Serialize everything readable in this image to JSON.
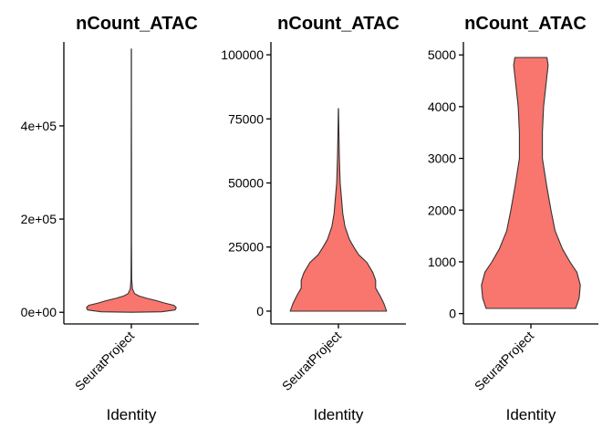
{
  "chart_data": [
    {
      "type": "violin",
      "title": "nCount_ATAC",
      "xlabel": "Identity",
      "ylabel": "",
      "categories": [
        "SeuratProject"
      ],
      "ylim": [
        -25000,
        580000
      ],
      "yticks": [
        0,
        200000,
        400000
      ],
      "ytick_labels": [
        "0e+00",
        "2e+05",
        "4e+05"
      ],
      "fill": "#F8766D",
      "density": [
        [
          0,
          0.0
        ],
        [
          1000,
          0.55
        ],
        [
          5000,
          0.8
        ],
        [
          10000,
          0.82
        ],
        [
          15000,
          0.78
        ],
        [
          20000,
          0.6
        ],
        [
          25000,
          0.46
        ],
        [
          30000,
          0.28
        ],
        [
          35000,
          0.14
        ],
        [
          40000,
          0.06
        ],
        [
          50000,
          0.02
        ],
        [
          70000,
          0.006
        ],
        [
          150000,
          0.004
        ],
        [
          300000,
          0.003
        ],
        [
          450000,
          0.002
        ],
        [
          565000,
          0.001
        ]
      ]
    },
    {
      "type": "violin",
      "title": "nCount_ATAC",
      "xlabel": "Identity",
      "ylabel": "",
      "categories": [
        "SeuratProject"
      ],
      "ylim": [
        -5000,
        105000
      ],
      "yticks": [
        0,
        25000,
        50000,
        75000,
        100000
      ],
      "ytick_labels": [
        "0",
        "25000",
        "50000",
        "75000",
        "100000"
      ],
      "fill": "#F8766D",
      "density": [
        [
          0,
          0.88
        ],
        [
          3000,
          0.83
        ],
        [
          6000,
          0.76
        ],
        [
          9000,
          0.68
        ],
        [
          12000,
          0.68
        ],
        [
          15000,
          0.63
        ],
        [
          19000,
          0.52
        ],
        [
          22000,
          0.37
        ],
        [
          25000,
          0.28
        ],
        [
          28000,
          0.2
        ],
        [
          33000,
          0.12
        ],
        [
          38000,
          0.08
        ],
        [
          43000,
          0.06
        ],
        [
          50000,
          0.032
        ],
        [
          60000,
          0.017
        ],
        [
          70000,
          0.009
        ],
        [
          79000,
          0.002
        ]
      ]
    },
    {
      "type": "violin",
      "title": "nCount_ATAC",
      "xlabel": "Identity",
      "ylabel": "",
      "categories": [
        "SeuratProject"
      ],
      "ylim": [
        -200,
        5250
      ],
      "yticks": [
        0,
        1000,
        2000,
        3000,
        4000,
        5000
      ],
      "ytick_labels": [
        "0",
        "1000",
        "2000",
        "3000",
        "4000",
        "5000"
      ],
      "fill": "#F8766D",
      "density": [
        [
          100,
          0.78
        ],
        [
          300,
          0.84
        ],
        [
          550,
          0.86
        ],
        [
          800,
          0.8
        ],
        [
          1000,
          0.68
        ],
        [
          1250,
          0.55
        ],
        [
          1600,
          0.42
        ],
        [
          2000,
          0.35
        ],
        [
          2500,
          0.27
        ],
        [
          3000,
          0.2
        ],
        [
          3500,
          0.2
        ],
        [
          4000,
          0.22
        ],
        [
          4500,
          0.27
        ],
        [
          4800,
          0.3
        ],
        [
          4950,
          0.28
        ]
      ]
    }
  ]
}
